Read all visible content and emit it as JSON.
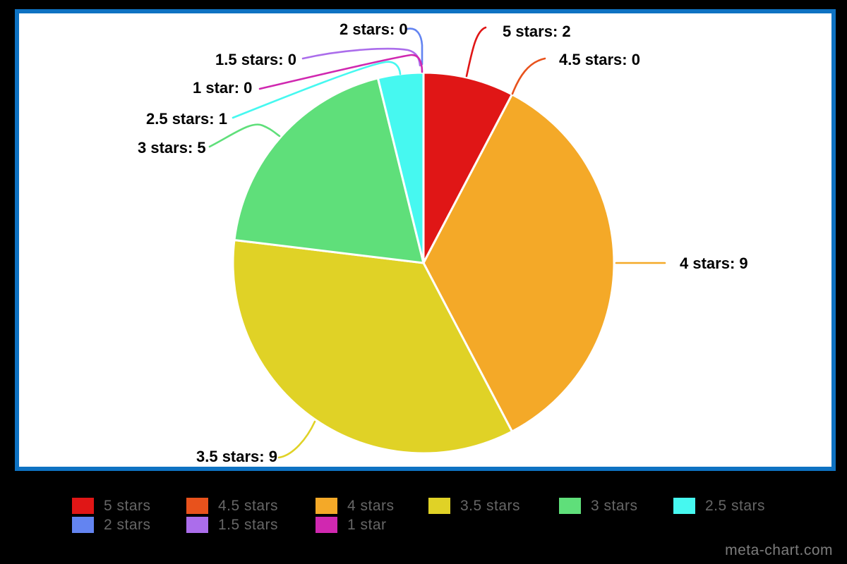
{
  "watermark": "meta-chart.com",
  "chart_data": {
    "type": "pie",
    "title": "",
    "total": 26,
    "start_angle_deg": 0,
    "direction": "clockwise",
    "callout_format": "{label}: {value}",
    "legend_position": "bottom",
    "background_color": "#ffffff",
    "frame_color": "#0e72c2",
    "page_background": "#000000",
    "slices": [
      {
        "label": "5 stars",
        "value": 2,
        "color": "#e01616"
      },
      {
        "label": "4.5 stars",
        "value": 0,
        "color": "#e8521c"
      },
      {
        "label": "4 stars",
        "value": 9,
        "color": "#f4a928"
      },
      {
        "label": "3.5 stars",
        "value": 9,
        "color": "#e0d226"
      },
      {
        "label": "3 stars",
        "value": 5,
        "color": "#5fdf7a"
      },
      {
        "label": "2.5 stars",
        "value": 1,
        "color": "#46f8f0"
      },
      {
        "label": "2 stars",
        "value": 0,
        "color": "#6384f1"
      },
      {
        "label": "1.5 stars",
        "value": 0,
        "color": "#ab6deb"
      },
      {
        "label": "1 star",
        "value": 0,
        "color": "#d028b0"
      }
    ]
  }
}
